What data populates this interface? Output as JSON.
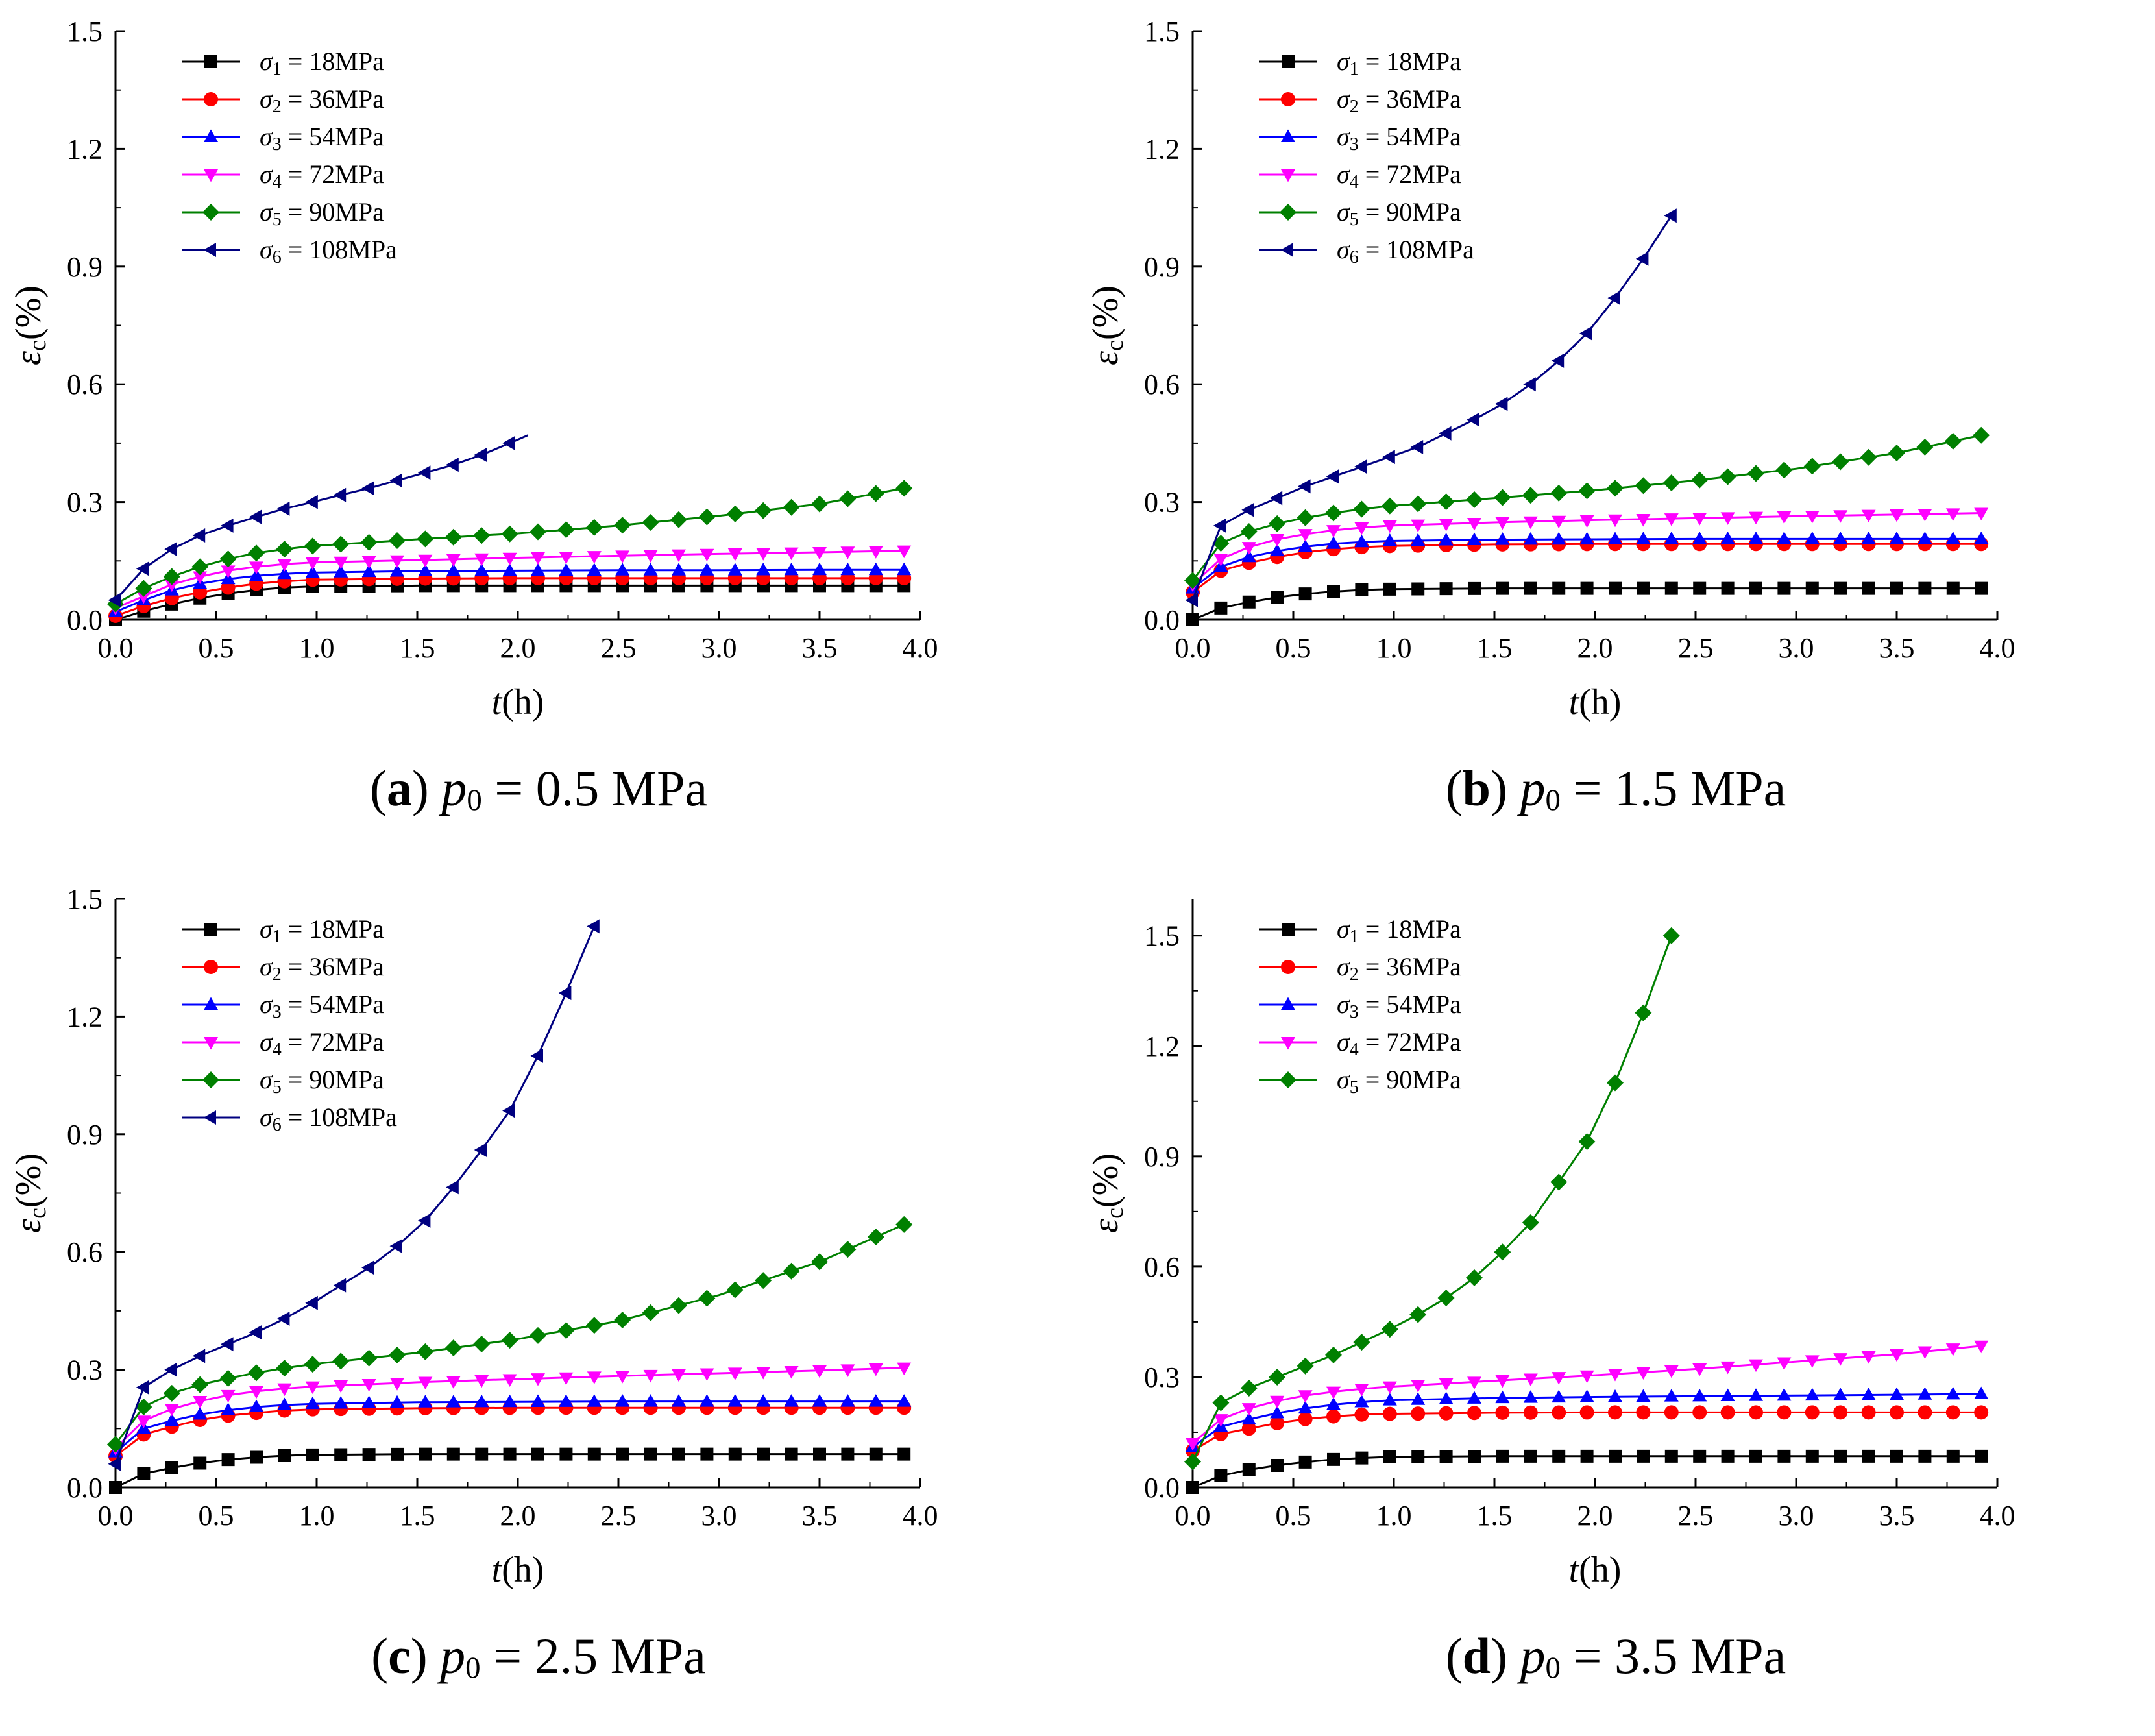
{
  "figure": {
    "colors": {
      "s1": "#000000",
      "s2": "#ff0000",
      "s3": "#0000ff",
      "s4": "#ff00ff",
      "s5": "#008000",
      "s6": "#000080"
    },
    "markers": {
      "s1": "square",
      "s2": "circle",
      "s3": "triangle-up",
      "s4": "triangle-down",
      "s5": "diamond",
      "s6": "triangle-left"
    }
  },
  "chart_data": [
    {
      "type": "line",
      "id": "a",
      "caption_letter": "a",
      "caption_symbol": "p",
      "caption_subscript": "0",
      "caption_rest": " = 0.5 MPa",
      "xlabel_var": "t",
      "xlabel_unit": "(h)",
      "ylabel_var": "ε",
      "ylabel_sub": "c",
      "ylabel_unit": "(%)",
      "xlim": [
        0,
        4
      ],
      "ylim": [
        0,
        1.5
      ],
      "xticks": [
        "0.0",
        "0.5",
        "1.0",
        "1.5",
        "2.0",
        "2.5",
        "3.0",
        "3.5",
        "4.0"
      ],
      "yticks": [
        "0.0",
        "0.3",
        "0.6",
        "0.9",
        "1.2",
        "1.5"
      ],
      "series": [
        {
          "key": "s1",
          "sym": "σ",
          "sub": "1",
          "label": " = 18MPa",
          "x": [
            0,
            0.14,
            0.28,
            0.42,
            0.56,
            0.7,
            0.84,
            0.98,
            1.5,
            2.0,
            2.5,
            3.0,
            3.5,
            3.92
          ],
          "y": [
            0.0,
            0.022,
            0.04,
            0.055,
            0.067,
            0.076,
            0.082,
            0.085,
            0.087,
            0.087,
            0.087,
            0.087,
            0.087,
            0.087
          ]
        },
        {
          "key": "s2",
          "sym": "σ",
          "sub": "2",
          "label": " = 36MPa",
          "x": [
            0,
            0.14,
            0.28,
            0.42,
            0.56,
            0.7,
            0.84,
            0.98,
            1.5,
            2.0,
            2.5,
            3.0,
            3.5,
            3.92
          ],
          "y": [
            0.01,
            0.035,
            0.055,
            0.07,
            0.082,
            0.092,
            0.098,
            0.102,
            0.105,
            0.106,
            0.106,
            0.106,
            0.106,
            0.106
          ]
        },
        {
          "key": "s3",
          "sym": "σ",
          "sub": "3",
          "label": " = 54MPa",
          "x": [
            0,
            0.14,
            0.28,
            0.42,
            0.56,
            0.7,
            0.84,
            0.98,
            1.5,
            2.0,
            2.5,
            3.0,
            3.5,
            3.92
          ],
          "y": [
            0.02,
            0.05,
            0.075,
            0.092,
            0.104,
            0.112,
            0.117,
            0.12,
            0.124,
            0.125,
            0.126,
            0.126,
            0.127,
            0.127
          ]
        },
        {
          "key": "s4",
          "sym": "σ",
          "sub": "4",
          "label": " = 72MPa",
          "x": [
            0,
            0.14,
            0.28,
            0.42,
            0.56,
            0.7,
            0.84,
            0.98,
            1.5,
            2.0,
            2.5,
            3.0,
            3.5,
            3.92
          ],
          "y": [
            0.03,
            0.06,
            0.09,
            0.11,
            0.125,
            0.135,
            0.142,
            0.146,
            0.152,
            0.158,
            0.163,
            0.168,
            0.172,
            0.176
          ]
        },
        {
          "key": "s5",
          "sym": "σ",
          "sub": "5",
          "label": " = 90MPa",
          "x": [
            0,
            0.14,
            0.28,
            0.42,
            0.56,
            0.7,
            0.84,
            0.98,
            1.5,
            2.0,
            2.5,
            3.0,
            3.5,
            3.92
          ],
          "y": [
            0.04,
            0.08,
            0.11,
            0.135,
            0.155,
            0.17,
            0.18,
            0.188,
            0.205,
            0.22,
            0.24,
            0.265,
            0.295,
            0.335
          ]
        },
        {
          "key": "s6",
          "sym": "σ",
          "sub": "6",
          "label": " = 108MPa",
          "x": [
            0,
            0.14,
            0.28,
            0.42,
            0.56,
            0.7,
            0.84,
            0.98,
            1.12,
            1.26,
            1.4,
            1.54,
            1.68,
            1.82,
            1.96,
            2.05
          ],
          "y": [
            0.05,
            0.13,
            0.18,
            0.215,
            0.24,
            0.262,
            0.283,
            0.3,
            0.318,
            0.335,
            0.355,
            0.375,
            0.395,
            0.42,
            0.45,
            0.47
          ]
        }
      ]
    },
    {
      "type": "line",
      "id": "b",
      "caption_letter": "b",
      "caption_symbol": "p",
      "caption_subscript": "0",
      "caption_rest": " = 1.5 MPa",
      "xlabel_var": "t",
      "xlabel_unit": "(h)",
      "ylabel_var": "ε",
      "ylabel_sub": "c",
      "ylabel_unit": "(%)",
      "xlim": [
        0,
        4
      ],
      "ylim": [
        0,
        1.5
      ],
      "xticks": [
        "0.0",
        "0.5",
        "1.0",
        "1.5",
        "2.0",
        "2.5",
        "3.0",
        "3.5",
        "4.0"
      ],
      "yticks": [
        "0.0",
        "0.3",
        "0.6",
        "0.9",
        "1.2",
        "1.5"
      ],
      "series": [
        {
          "key": "s1",
          "sym": "σ",
          "sub": "1",
          "label": " = 18MPa",
          "x": [
            0,
            0.14,
            0.28,
            0.42,
            0.56,
            0.7,
            0.84,
            0.98,
            1.5,
            2.0,
            2.5,
            3.0,
            3.5,
            3.92
          ],
          "y": [
            0.0,
            0.03,
            0.045,
            0.057,
            0.066,
            0.072,
            0.076,
            0.078,
            0.08,
            0.08,
            0.08,
            0.08,
            0.08,
            0.08
          ]
        },
        {
          "key": "s2",
          "sym": "σ",
          "sub": "2",
          "label": " = 36MPa",
          "x": [
            0,
            0.14,
            0.28,
            0.42,
            0.56,
            0.7,
            0.84,
            0.98,
            1.5,
            2.0,
            2.5,
            3.0,
            3.5,
            3.92
          ],
          "y": [
            0.07,
            0.125,
            0.145,
            0.16,
            0.172,
            0.18,
            0.185,
            0.188,
            0.192,
            0.193,
            0.193,
            0.193,
            0.193,
            0.193
          ]
        },
        {
          "key": "s3",
          "sym": "σ",
          "sub": "3",
          "label": " = 54MPa",
          "x": [
            0,
            0.14,
            0.28,
            0.42,
            0.56,
            0.7,
            0.84,
            0.98,
            1.5,
            2.0,
            2.5,
            3.0,
            3.5,
            3.92
          ],
          "y": [
            0.08,
            0.135,
            0.16,
            0.175,
            0.186,
            0.194,
            0.198,
            0.201,
            0.204,
            0.205,
            0.206,
            0.206,
            0.206,
            0.206
          ]
        },
        {
          "key": "s4",
          "sym": "σ",
          "sub": "4",
          "label": " = 72MPa",
          "x": [
            0,
            0.14,
            0.28,
            0.42,
            0.56,
            0.7,
            0.84,
            0.98,
            1.5,
            2.0,
            2.5,
            3.0,
            3.5,
            3.92
          ],
          "y": [
            0.09,
            0.155,
            0.185,
            0.205,
            0.218,
            0.228,
            0.235,
            0.24,
            0.248,
            0.254,
            0.259,
            0.264,
            0.268,
            0.272
          ]
        },
        {
          "key": "s5",
          "sym": "σ",
          "sub": "5",
          "label": " = 90MPa",
          "x": [
            0,
            0.14,
            0.28,
            0.42,
            0.56,
            0.7,
            0.84,
            0.98,
            1.5,
            2.0,
            2.5,
            3.0,
            3.5,
            3.92
          ],
          "y": [
            0.1,
            0.195,
            0.225,
            0.245,
            0.26,
            0.272,
            0.282,
            0.29,
            0.31,
            0.33,
            0.355,
            0.385,
            0.425,
            0.47
          ]
        },
        {
          "key": "s6",
          "sym": "σ",
          "sub": "6",
          "label": " = 108MPa",
          "x": [
            0,
            0.14,
            0.28,
            0.42,
            0.56,
            0.7,
            0.84,
            0.98,
            1.12,
            1.26,
            1.4,
            1.54,
            1.68,
            1.82,
            1.96,
            2.1,
            2.24,
            2.38
          ],
          "y": [
            0.05,
            0.24,
            0.28,
            0.31,
            0.34,
            0.365,
            0.39,
            0.415,
            0.44,
            0.475,
            0.51,
            0.55,
            0.6,
            0.66,
            0.73,
            0.82,
            0.92,
            1.03
          ]
        }
      ]
    },
    {
      "type": "line",
      "id": "c",
      "caption_letter": "c",
      "caption_symbol": "p",
      "caption_subscript": "0",
      "caption_rest": " = 2.5 MPa",
      "xlabel_var": "t",
      "xlabel_unit": "(h)",
      "ylabel_var": "ε",
      "ylabel_sub": "c",
      "ylabel_unit": "(%)",
      "xlim": [
        0,
        4
      ],
      "ylim": [
        0,
        1.5
      ],
      "xticks": [
        "0.0",
        "0.5",
        "1.0",
        "1.5",
        "2.0",
        "2.5",
        "3.0",
        "3.5",
        "4.0"
      ],
      "yticks": [
        "0.0",
        "0.3",
        "0.6",
        "0.9",
        "1.2",
        "1.5"
      ],
      "series": [
        {
          "key": "s1",
          "sym": "σ",
          "sub": "1",
          "label": " = 18MPa",
          "x": [
            0,
            0.14,
            0.28,
            0.42,
            0.56,
            0.7,
            0.84,
            0.98,
            1.5,
            2.0,
            2.5,
            3.0,
            3.5,
            3.92
          ],
          "y": [
            0.0,
            0.035,
            0.05,
            0.062,
            0.071,
            0.077,
            0.081,
            0.083,
            0.085,
            0.085,
            0.085,
            0.085,
            0.085,
            0.085
          ]
        },
        {
          "key": "s2",
          "sym": "σ",
          "sub": "2",
          "label": " = 36MPa",
          "x": [
            0,
            0.14,
            0.28,
            0.42,
            0.56,
            0.7,
            0.84,
            0.98,
            1.5,
            2.0,
            2.5,
            3.0,
            3.5,
            3.92
          ],
          "y": [
            0.08,
            0.135,
            0.155,
            0.172,
            0.183,
            0.19,
            0.196,
            0.199,
            0.202,
            0.203,
            0.203,
            0.203,
            0.203,
            0.203
          ]
        },
        {
          "key": "s3",
          "sym": "σ",
          "sub": "3",
          "label": " = 54MPa",
          "x": [
            0,
            0.14,
            0.28,
            0.42,
            0.56,
            0.7,
            0.84,
            0.98,
            1.5,
            2.0,
            2.5,
            3.0,
            3.5,
            3.92
          ],
          "y": [
            0.09,
            0.15,
            0.17,
            0.186,
            0.197,
            0.205,
            0.21,
            0.213,
            0.217,
            0.218,
            0.219,
            0.219,
            0.219,
            0.219
          ]
        },
        {
          "key": "s4",
          "sym": "σ",
          "sub": "4",
          "label": " = 72MPa",
          "x": [
            0,
            0.14,
            0.28,
            0.42,
            0.56,
            0.7,
            0.84,
            0.98,
            1.5,
            2.0,
            2.5,
            3.0,
            3.5,
            3.92
          ],
          "y": [
            0.1,
            0.17,
            0.2,
            0.22,
            0.235,
            0.245,
            0.252,
            0.257,
            0.268,
            0.276,
            0.284,
            0.291,
            0.298,
            0.305
          ]
        },
        {
          "key": "s5",
          "sym": "σ",
          "sub": "5",
          "label": " = 90MPa",
          "x": [
            0,
            0.14,
            0.28,
            0.42,
            0.56,
            0.7,
            0.84,
            0.98,
            1.5,
            2.0,
            2.5,
            3.0,
            3.5,
            3.92
          ],
          "y": [
            0.11,
            0.205,
            0.24,
            0.262,
            0.278,
            0.292,
            0.304,
            0.314,
            0.343,
            0.378,
            0.424,
            0.49,
            0.575,
            0.67
          ]
        },
        {
          "key": "s6",
          "sym": "σ",
          "sub": "6",
          "label": " = 108MPa",
          "x": [
            0,
            0.14,
            0.28,
            0.42,
            0.56,
            0.7,
            0.84,
            0.98,
            1.12,
            1.26,
            1.4,
            1.54,
            1.68,
            1.82,
            1.96,
            2.1,
            2.24,
            2.38
          ],
          "y": [
            0.06,
            0.255,
            0.3,
            0.335,
            0.365,
            0.395,
            0.43,
            0.47,
            0.515,
            0.56,
            0.615,
            0.68,
            0.765,
            0.86,
            0.96,
            1.1,
            1.26,
            1.43
          ]
        }
      ]
    },
    {
      "type": "line",
      "id": "d",
      "caption_letter": "d",
      "caption_symbol": "p",
      "caption_subscript": "0",
      "caption_rest": " = 3.5 MPa",
      "xlabel_var": "t",
      "xlabel_unit": "(h)",
      "ylabel_var": "ε",
      "ylabel_sub": "c",
      "ylabel_unit": "(%)",
      "xlim": [
        0,
        4
      ],
      "ylim": [
        0,
        1.6
      ],
      "xticks": [
        "0.0",
        "0.5",
        "1.0",
        "1.5",
        "2.0",
        "2.5",
        "3.0",
        "3.5",
        "4.0"
      ],
      "yticks": [
        "0.0",
        "0.3",
        "0.6",
        "0.9",
        "1.2",
        "1.5"
      ],
      "series": [
        {
          "key": "s1",
          "sym": "σ",
          "sub": "1",
          "label": " = 18MPa",
          "x": [
            0,
            0.14,
            0.28,
            0.42,
            0.56,
            0.7,
            0.84,
            0.98,
            1.5,
            2.0,
            2.5,
            3.0,
            3.5,
            3.92
          ],
          "y": [
            0.0,
            0.032,
            0.048,
            0.06,
            0.069,
            0.076,
            0.08,
            0.083,
            0.085,
            0.085,
            0.085,
            0.085,
            0.085,
            0.085
          ]
        },
        {
          "key": "s2",
          "sym": "σ",
          "sub": "2",
          "label": " = 36MPa",
          "x": [
            0,
            0.14,
            0.28,
            0.42,
            0.56,
            0.7,
            0.84,
            0.98,
            1.5,
            2.0,
            2.5,
            3.0,
            3.5,
            3.92
          ],
          "y": [
            0.1,
            0.145,
            0.16,
            0.175,
            0.186,
            0.193,
            0.198,
            0.2,
            0.203,
            0.204,
            0.204,
            0.204,
            0.204,
            0.204
          ]
        },
        {
          "key": "s3",
          "sym": "σ",
          "sub": "3",
          "label": " = 54MPa",
          "x": [
            0,
            0.14,
            0.28,
            0.42,
            0.56,
            0.7,
            0.84,
            0.98,
            1.5,
            2.0,
            2.5,
            3.0,
            3.5,
            3.92
          ],
          "y": [
            0.11,
            0.165,
            0.185,
            0.202,
            0.215,
            0.225,
            0.232,
            0.237,
            0.243,
            0.246,
            0.248,
            0.25,
            0.252,
            0.254
          ]
        },
        {
          "key": "s4",
          "sym": "σ",
          "sub": "4",
          "label": " = 72MPa",
          "x": [
            0,
            0.14,
            0.28,
            0.42,
            0.56,
            0.7,
            0.84,
            0.98,
            1.5,
            2.0,
            2.5,
            3.0,
            3.5,
            3.92
          ],
          "y": [
            0.12,
            0.185,
            0.215,
            0.235,
            0.25,
            0.26,
            0.268,
            0.274,
            0.29,
            0.305,
            0.322,
            0.342,
            0.362,
            0.385
          ]
        },
        {
          "key": "s5",
          "sym": "σ",
          "sub": "5",
          "label": " = 90MPa",
          "x": [
            0,
            0.14,
            0.28,
            0.42,
            0.56,
            0.7,
            0.84,
            0.98,
            1.12,
            1.26,
            1.4,
            1.54,
            1.68,
            1.82,
            1.96,
            2.1,
            2.24,
            2.38
          ],
          "y": [
            0.07,
            0.23,
            0.27,
            0.3,
            0.33,
            0.36,
            0.395,
            0.43,
            0.47,
            0.515,
            0.57,
            0.64,
            0.72,
            0.83,
            0.94,
            1.1,
            1.29,
            1.5
          ]
        }
      ]
    }
  ]
}
